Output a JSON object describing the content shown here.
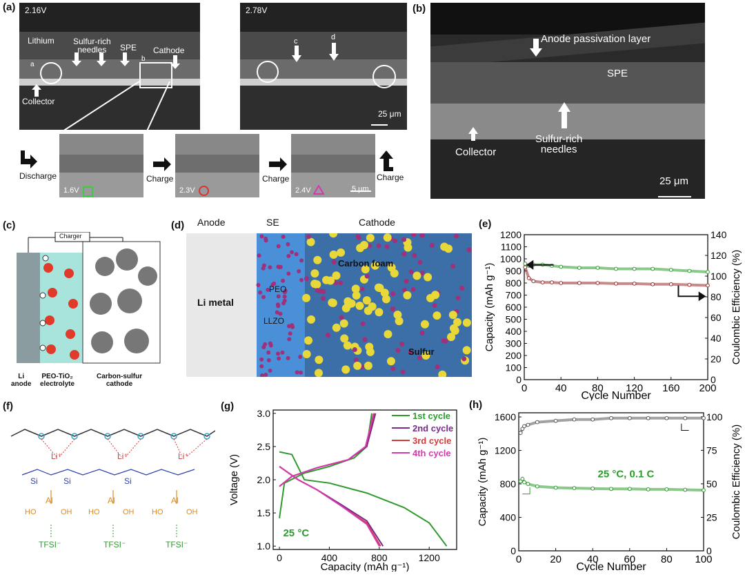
{
  "panel_labels": {
    "a": "(a)",
    "b": "(b)",
    "c": "(c)",
    "d": "(d)",
    "e": "(e)",
    "f": "(f)",
    "g": "(g)",
    "h": "(h)"
  },
  "panel_a": {
    "left_voltage": "2.16V",
    "right_voltage": "2.78V",
    "lithium": "Lithium",
    "sulfur_needles": "Sulfur-rich\nneedles",
    "spe": "SPE",
    "cathode": "Cathode",
    "collector": "Collector",
    "mark_a": "a",
    "mark_b": "b",
    "mark_c": "c",
    "mark_d": "d",
    "scale": "25 μm",
    "discharge": "Discharge",
    "charge1": "Charge",
    "charge2": "Charge",
    "charge3": "Charge",
    "v1": "1.6V",
    "v2": "2.3V",
    "v3": "2.4V",
    "scale_small": "5 μm"
  },
  "panel_b": {
    "anode_layer": "Anode passivation layer",
    "spe": "SPE",
    "collector": "Collector",
    "needles": "Sulfur-rich\nneedles",
    "scale": "25 μm"
  },
  "panel_c": {
    "charger": "Charger",
    "li_anode": "Li\nanode",
    "electrolyte": "PEO-TiO₂\nelectrolyte",
    "cathode": "Carbon-sulfur\ncathode"
  },
  "panel_d": {
    "anode": "Anode",
    "se": "SE",
    "cathode": "Cathode",
    "li_metal": "Li metal",
    "peo": "PEO",
    "llzo": "LLZO",
    "carbon_foam": "Carbon foam",
    "sulfur": "Sulfur"
  },
  "panel_f": {
    "li": "Li⁺",
    "si": "Si",
    "o": "O",
    "al": "Al",
    "ho": "HO",
    "oh": "OH",
    "tfsi": "TFSI⁻"
  },
  "colors": {
    "green": "#2e9a2e",
    "darkred": "#9b2c2c",
    "purple": "#7a2a8a",
    "red": "#d23a3a",
    "magenta": "#d23ab0",
    "orange": "#e08a1e",
    "blue": "#2a3fb0",
    "teal": "#3aa6c8",
    "blue_se": "#4a90d9",
    "yellow": "#e8d83a"
  },
  "chart_data": [
    {
      "id": "e",
      "type": "scatter",
      "xlabel": "Cycle Number",
      "ylabel": "Capacity (mAh g⁻¹)",
      "y2label": "Coulombic Efficiency (%)",
      "xlim": [
        0,
        200
      ],
      "ylim": [
        0,
        1200
      ],
      "y2lim": [
        0,
        140
      ],
      "xticks": [
        0,
        40,
        80,
        120,
        160,
        200
      ],
      "yticks": [
        0,
        100,
        200,
        300,
        400,
        500,
        600,
        700,
        800,
        900,
        1000,
        1100,
        1200
      ],
      "y2ticks": [
        0,
        20,
        40,
        60,
        80,
        100,
        120,
        140
      ],
      "series": [
        {
          "axis": "y2",
          "x": [
            1,
            5,
            10,
            20,
            30,
            40,
            60,
            80,
            100,
            120,
            140,
            160,
            180,
            200
          ],
          "values": [
            112,
            110,
            111,
            111,
            110,
            109,
            108,
            108,
            107,
            107,
            107,
            106,
            105,
            104
          ]
        },
        {
          "axis": "y",
          "x": [
            1,
            5,
            10,
            20,
            30,
            40,
            60,
            80,
            100,
            120,
            140,
            160,
            180,
            200
          ],
          "values": [
            930,
            840,
            815,
            805,
            805,
            800,
            800,
            800,
            795,
            795,
            790,
            790,
            785,
            780
          ]
        }
      ]
    },
    {
      "id": "g",
      "type": "line",
      "xlabel": "Capacity (mAh g⁻¹)",
      "ylabel": "Voltage (V)",
      "xlim": [
        -50,
        1420
      ],
      "ylim": [
        0.95,
        3.05
      ],
      "xticks": [
        0,
        400,
        800,
        1200
      ],
      "yticks": [
        1.0,
        1.5,
        2.0,
        2.5,
        3.0
      ],
      "annotation": "25 °C",
      "series": [
        {
          "name": "1st cycle",
          "discharge": [
            [
              0,
              2.42
            ],
            [
              100,
              2.38
            ],
            [
              200,
              2.0
            ],
            [
              400,
              1.95
            ],
            [
              700,
              1.8
            ],
            [
              1000,
              1.58
            ],
            [
              1200,
              1.35
            ],
            [
              1340,
              1.0
            ]
          ],
          "charge": [
            [
              0,
              1.42
            ],
            [
              40,
              1.95
            ],
            [
              200,
              2.1
            ],
            [
              400,
              2.2
            ],
            [
              600,
              2.33
            ],
            [
              700,
              2.5
            ],
            [
              740,
              3.0
            ]
          ]
        },
        {
          "name": "2nd cycle",
          "discharge": [
            [
              0,
              2.2
            ],
            [
              150,
              2.0
            ],
            [
              300,
              1.85
            ],
            [
              500,
              1.62
            ],
            [
              700,
              1.38
            ],
            [
              830,
              1.0
            ]
          ],
          "charge": [
            [
              0,
              1.9
            ],
            [
              100,
              2.05
            ],
            [
              300,
              2.18
            ],
            [
              550,
              2.3
            ],
            [
              700,
              2.5
            ],
            [
              770,
              3.0
            ]
          ]
        },
        {
          "name": "3rd cycle",
          "discharge": [
            [
              0,
              2.2
            ],
            [
              150,
              2.0
            ],
            [
              300,
              1.85
            ],
            [
              500,
              1.6
            ],
            [
              700,
              1.35
            ],
            [
              810,
              1.0
            ]
          ],
          "charge": [
            [
              0,
              1.9
            ],
            [
              100,
              2.05
            ],
            [
              300,
              2.18
            ],
            [
              550,
              2.3
            ],
            [
              690,
              2.5
            ],
            [
              760,
              3.0
            ]
          ]
        },
        {
          "name": "4th cycle",
          "discharge": [
            [
              0,
              2.2
            ],
            [
              150,
              2.0
            ],
            [
              300,
              1.85
            ],
            [
              500,
              1.6
            ],
            [
              700,
              1.33
            ],
            [
              800,
              1.0
            ]
          ],
          "charge": [
            [
              0,
              1.9
            ],
            [
              100,
              2.05
            ],
            [
              300,
              2.18
            ],
            [
              550,
              2.3
            ],
            [
              690,
              2.5
            ],
            [
              755,
              3.0
            ]
          ]
        }
      ]
    },
    {
      "id": "h",
      "type": "scatter",
      "xlabel": "Cycle Number",
      "ylabel": "Capacity (mAh g⁻¹)",
      "y2label": "Coulombic Efficiency (%)",
      "xlim": [
        0,
        100
      ],
      "ylim": [
        0,
        1650
      ],
      "y2lim": [
        0,
        103
      ],
      "xticks": [
        0,
        20,
        40,
        60,
        80,
        100
      ],
      "yticks": [
        0,
        400,
        800,
        1200,
        1600
      ],
      "y2ticks": [
        0,
        25,
        50,
        75,
        100
      ],
      "annotation": "25 °C, 0.1 C",
      "series": [
        {
          "axis": "y2",
          "x": [
            1,
            2,
            3,
            5,
            10,
            20,
            30,
            40,
            50,
            60,
            70,
            80,
            90,
            100
          ],
          "values": [
            88,
            91,
            93,
            94,
            96,
            97,
            98,
            98,
            99,
            99,
            99,
            99,
            99,
            99
          ]
        },
        {
          "axis": "y",
          "x": [
            1,
            2,
            3,
            5,
            10,
            20,
            30,
            40,
            50,
            60,
            70,
            80,
            90,
            100
          ],
          "values": [
            830,
            860,
            820,
            800,
            770,
            755,
            750,
            745,
            740,
            740,
            735,
            735,
            730,
            725
          ]
        }
      ]
    }
  ]
}
